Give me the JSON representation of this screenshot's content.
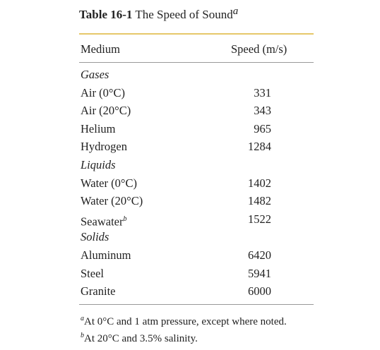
{
  "table": {
    "label": "Table 16-1",
    "title": "The Speed of Sound",
    "title_note": "a",
    "header": [
      "Medium",
      "Speed (m/s)"
    ],
    "groups": [
      {
        "name": "Gases",
        "rows": [
          {
            "medium": "Air (0°C)",
            "speed": 331
          },
          {
            "medium": "Air (20°C)",
            "speed": 343
          },
          {
            "medium": "Helium",
            "speed": 965
          },
          {
            "medium": "Hydrogen",
            "speed": 1284
          }
        ]
      },
      {
        "name": "Liquids",
        "rows": [
          {
            "medium": "Water (0°C)",
            "speed": 1402
          },
          {
            "medium": "Water (20°C)",
            "speed": 1482
          },
          {
            "medium": "Seawater",
            "note": "b",
            "speed": 1522
          }
        ]
      },
      {
        "name": "Solids",
        "rows": [
          {
            "medium": "Aluminum",
            "speed": 6420
          },
          {
            "medium": "Steel",
            "speed": 5941
          },
          {
            "medium": "Granite",
            "speed": 6000
          }
        ]
      }
    ],
    "footnotes": [
      {
        "mark": "a",
        "text": "At 0°C and 1 atm pressure, except where noted."
      },
      {
        "mark": "b",
        "text": "At 20°C and 3.5% salinity."
      }
    ]
  }
}
